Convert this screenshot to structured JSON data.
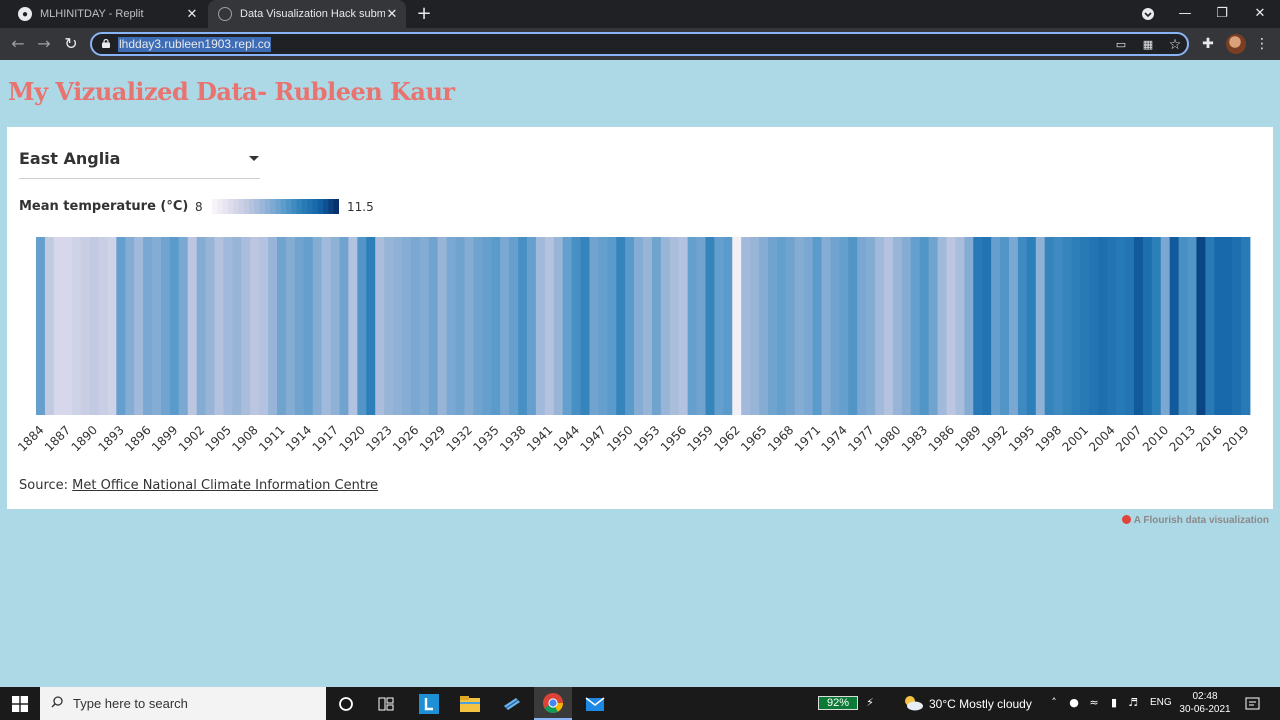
{
  "browser": {
    "tabs": [
      {
        "title": "MLHINITDAY - Replit",
        "active": false
      },
      {
        "title": "Data Visualization Hack submissi",
        "active": true
      }
    ],
    "url": "lhdday3.rubleen1903.repl.co"
  },
  "page": {
    "title": "My Vizualized Data- Rubleen Kaur",
    "region": "East Anglia",
    "legend": {
      "title": "Mean temperature (°C)",
      "min": "8",
      "max": "11.5"
    },
    "source_prefix": "Source:",
    "source_link": "Met Office National Climate Information Centre",
    "attribution": "A Flourish data visualization"
  },
  "colors": {
    "background": "#add8e6",
    "title": "#e8736f",
    "scale_low": "#f7f4f9",
    "scale_high": "#08306b"
  },
  "chart_data": {
    "type": "heatmap",
    "title": "",
    "value_label": "Mean temperature (°C)",
    "color_range": [
      8,
      11.5
    ],
    "x": [
      1884,
      1885,
      1886,
      1887,
      1888,
      1889,
      1890,
      1891,
      1892,
      1893,
      1894,
      1895,
      1896,
      1897,
      1898,
      1899,
      1900,
      1901,
      1902,
      1903,
      1904,
      1905,
      1906,
      1907,
      1908,
      1909,
      1910,
      1911,
      1912,
      1913,
      1914,
      1915,
      1916,
      1917,
      1918,
      1919,
      1920,
      1921,
      1922,
      1923,
      1924,
      1925,
      1926,
      1927,
      1928,
      1929,
      1930,
      1931,
      1932,
      1933,
      1934,
      1935,
      1936,
      1937,
      1938,
      1939,
      1940,
      1941,
      1942,
      1943,
      1944,
      1945,
      1946,
      1947,
      1948,
      1949,
      1950,
      1951,
      1952,
      1953,
      1954,
      1955,
      1956,
      1957,
      1958,
      1959,
      1960,
      1961,
      1962,
      1963,
      1964,
      1965,
      1966,
      1967,
      1968,
      1969,
      1970,
      1971,
      1972,
      1973,
      1974,
      1975,
      1976,
      1977,
      1978,
      1979,
      1980,
      1981,
      1982,
      1983,
      1984,
      1985,
      1986,
      1987,
      1988,
      1989,
      1990,
      1991,
      1992,
      1993,
      1994,
      1995,
      1996,
      1997,
      1998,
      1999,
      2000,
      2001,
      2002,
      2003,
      2004,
      2005,
      2006,
      2007,
      2008,
      2009,
      2010,
      2011,
      2012,
      2013,
      2014,
      2015,
      2016,
      2017,
      2018,
      2019
    ],
    "values": [
      9.9,
      8.9,
      8.6,
      8.6,
      8.7,
      8.8,
      8.9,
      8.8,
      8.7,
      9.9,
      9.6,
      9.3,
      9.7,
      9.6,
      9.8,
      10.0,
      9.7,
      9.0,
      9.6,
      9.4,
      9.1,
      9.3,
      9.4,
      9.2,
      9.0,
      9.1,
      9.4,
      9.8,
      9.6,
      9.8,
      9.9,
      9.6,
      9.3,
      9.5,
      9.8,
      9.1,
      10.1,
      10.5,
      9.2,
      9.4,
      9.5,
      9.6,
      9.7,
      9.6,
      9.8,
      9.4,
      9.7,
      9.8,
      9.6,
      9.8,
      9.9,
      10.0,
      9.7,
      9.9,
      10.2,
      9.9,
      9.3,
      9.1,
      9.4,
      9.9,
      10.2,
      10.4,
      9.8,
      9.9,
      10.0,
      10.4,
      10.0,
      9.6,
      9.4,
      9.8,
      9.4,
      9.2,
      9.1,
      9.9,
      9.8,
      10.4,
      9.9,
      10.0,
      8.1,
      9.3,
      9.4,
      9.6,
      9.8,
      9.9,
      9.8,
      9.6,
      9.7,
      10.0,
      9.6,
      9.8,
      9.9,
      10.1,
      9.7,
      9.6,
      9.3,
      9.1,
      9.4,
      9.6,
      9.9,
      10.1,
      9.8,
      9.3,
      9.0,
      9.2,
      9.6,
      10.6,
      10.7,
      9.9,
      10.1,
      9.7,
      10.3,
      10.5,
      9.5,
      10.4,
      10.3,
      10.4,
      10.5,
      10.6,
      10.7,
      10.8,
      10.7,
      10.6,
      10.7,
      11.1,
      10.8,
      10.5,
      9.7,
      11.1,
      10.2,
      10.1,
      11.3,
      10.6,
      10.9,
      10.9,
      10.8,
      10.6
    ],
    "tick_years": [
      1884,
      1887,
      1890,
      1893,
      1896,
      1899,
      1902,
      1905,
      1908,
      1911,
      1914,
      1917,
      1920,
      1923,
      1926,
      1929,
      1932,
      1935,
      1938,
      1941,
      1944,
      1947,
      1950,
      1953,
      1956,
      1959,
      1962,
      1965,
      1968,
      1971,
      1974,
      1977,
      1980,
      1983,
      1986,
      1989,
      1992,
      1995,
      1998,
      2001,
      2004,
      2007,
      2010,
      2013,
      2016,
      2019
    ],
    "grid": false,
    "legend_position": "top-left"
  },
  "taskbar": {
    "search_placeholder": "Type here to search",
    "battery": "92%",
    "weather": "30°C  Mostly cloudy",
    "language": "ENG",
    "time": "02:48",
    "date": "30-06-2021"
  }
}
